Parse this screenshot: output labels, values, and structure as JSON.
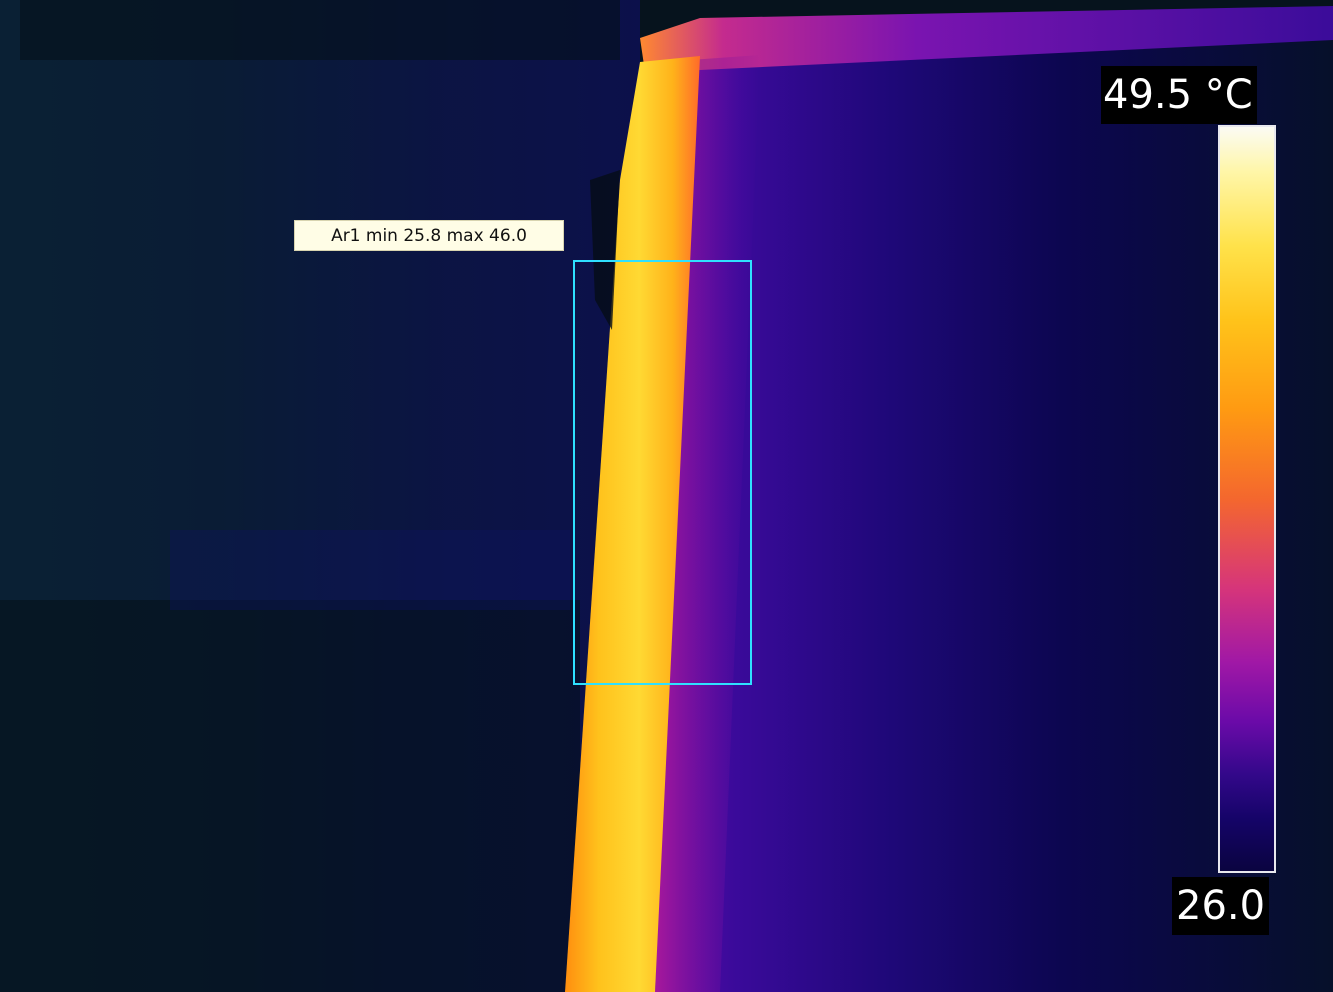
{
  "scale": {
    "max_label": "49.5 °C",
    "min_label": "26.0"
  },
  "measurement": {
    "label": "Ar1 min 25.8 max 46.0"
  },
  "colors": {
    "palette": "iron",
    "background": "#06121e",
    "hot_edge": "#ffd02a",
    "box_outline": "#2fe0ff"
  }
}
